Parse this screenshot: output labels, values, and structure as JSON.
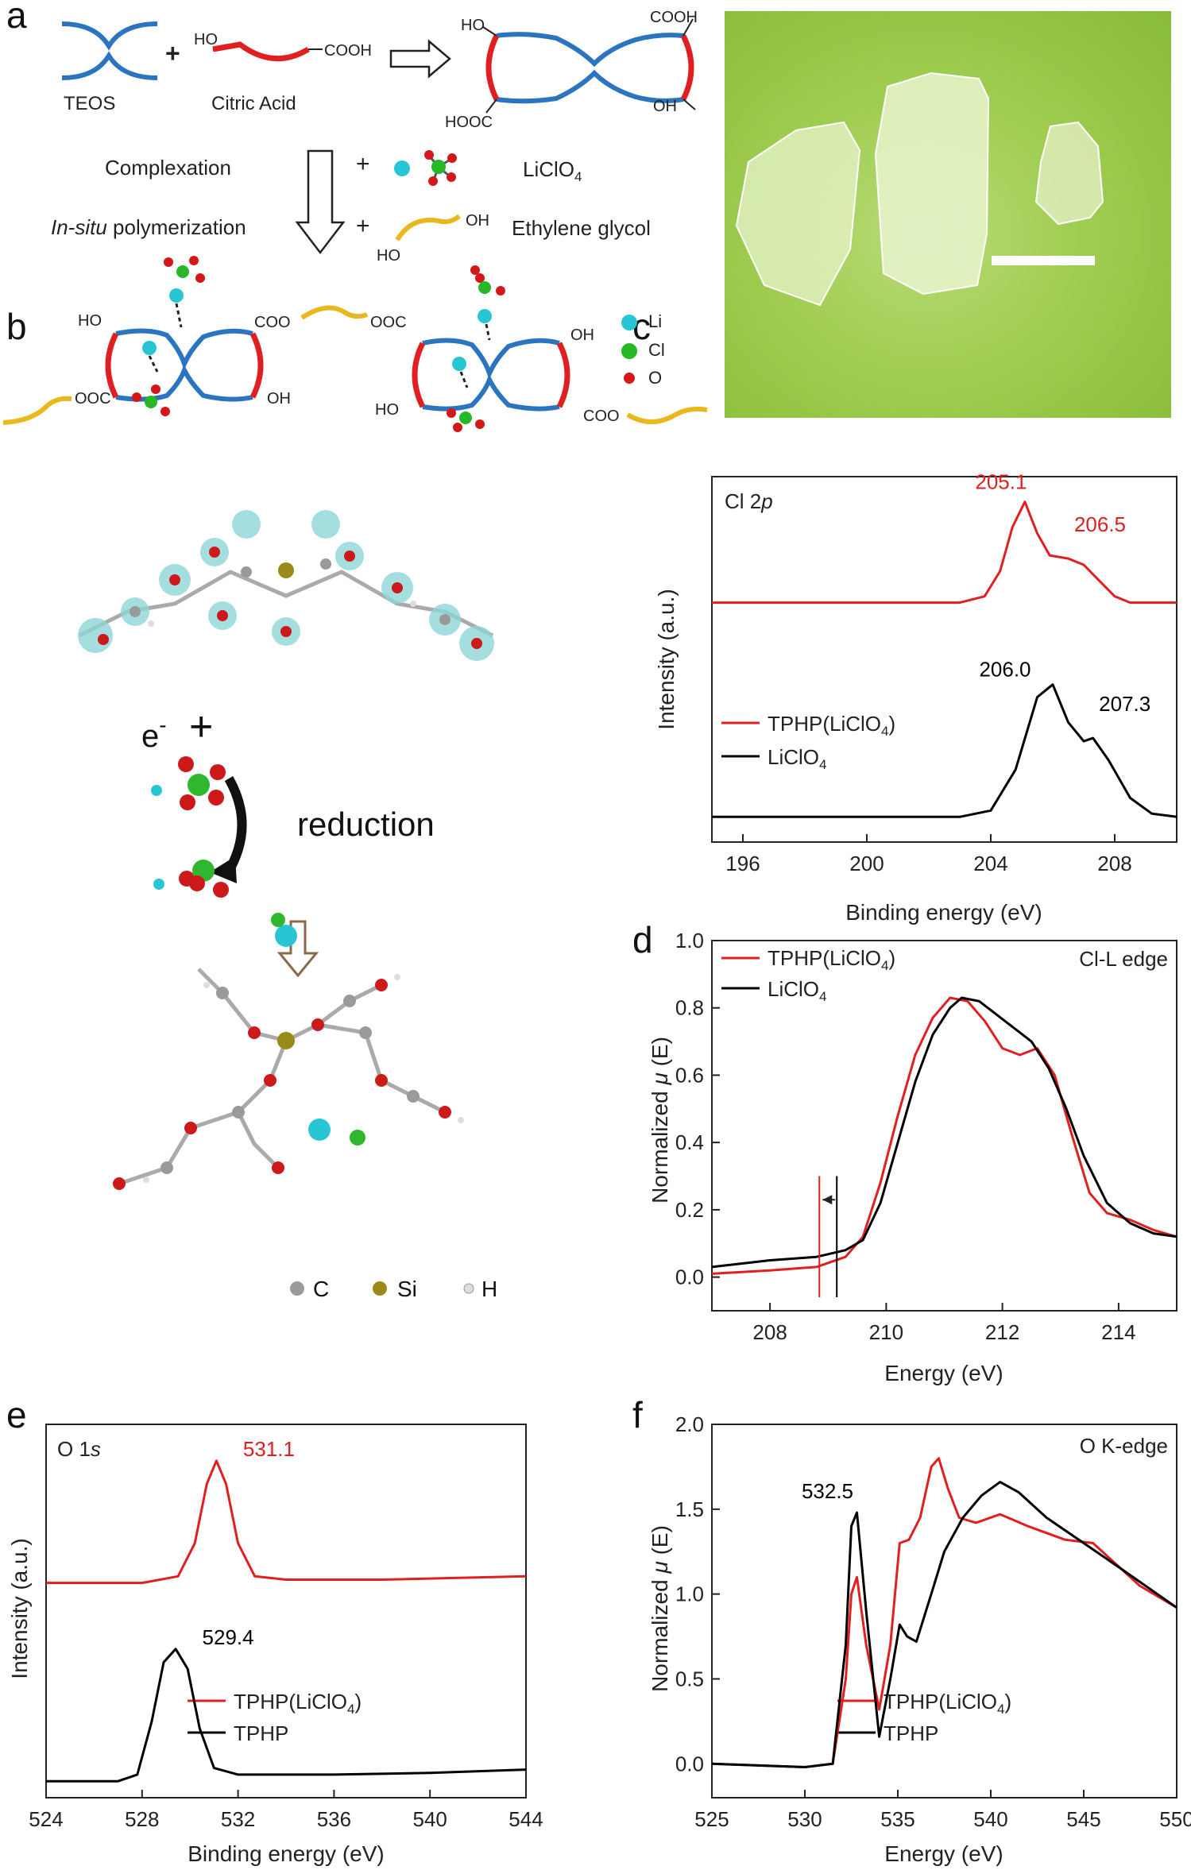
{
  "panel_labels": {
    "a": "a",
    "b": "b",
    "c": "c",
    "d": "d",
    "e": "e",
    "f": "f"
  },
  "scheme": {
    "teos": "TEOS",
    "citric_acid": "Citric Acid",
    "plus": "+",
    "complexation": "Complexation",
    "licl_o4_prefix": "LiClO",
    "licl_o4_sub": "4",
    "in_situ": "In-situ",
    "polymerization": " polymerization",
    "ethylene_glycol": "Ethylene glycol",
    "groups": {
      "ho": "HO",
      "oh": "OH",
      "cooh": "COOH",
      "hooc": "HOOC",
      "coo": "COO",
      "ooc": "OOC"
    },
    "legend": {
      "li": "Li",
      "cl": "Cl",
      "o": "O"
    },
    "colors": {
      "teos_blue": "#2a74c0",
      "citric_red": "#e02020",
      "glycol_yellow": "#e8b81c",
      "li": "#28c6d4",
      "cl": "#26b826",
      "o": "#d41818"
    }
  },
  "photo": {
    "background": "#9fcd50",
    "scale_bar": "white"
  },
  "panel_b": {
    "electron": "e",
    "electron_sup": "-",
    "plus": "+",
    "reduction": "reduction",
    "legend": {
      "c": "C",
      "si": "Si",
      "h": "H"
    },
    "colors": {
      "c": "#9a9a9a",
      "si": "#9a8a18",
      "h": "#dddddd",
      "o": "#cc1a1a",
      "li": "#28c6d4",
      "cl": "#2fb82f",
      "orbital": "#8fd6d6"
    }
  },
  "chart_data": [
    {
      "id": "c",
      "type": "line",
      "title": "Cl 2",
      "title_italic": "p",
      "xlabel": "Binding energy (eV)",
      "ylabel": "Intensity (a.u.)",
      "xlim": [
        195,
        210
      ],
      "xticks": [
        "196",
        "200",
        "204",
        "208"
      ],
      "yticks": [],
      "series": [
        {
          "name": "TPHP(LiClO",
          "name_sub": "4",
          "name_end": ")",
          "color": "#e02020",
          "x": [
            195,
            203,
            203.8,
            204.3,
            204.7,
            205.1,
            205.5,
            205.9,
            206.5,
            207.0,
            207.5,
            208.0,
            208.5,
            210
          ],
          "y": [
            0.68,
            0.68,
            0.7,
            0.78,
            0.92,
            1.0,
            0.9,
            0.83,
            0.82,
            0.8,
            0.75,
            0.7,
            0.68,
            0.68
          ]
        },
        {
          "name": "LiClO",
          "name_sub": "4",
          "color": "#000000",
          "x": [
            195,
            203,
            204,
            204.8,
            205.5,
            206.0,
            206.5,
            207.0,
            207.3,
            207.8,
            208.5,
            209.2,
            210
          ],
          "y": [
            0.0,
            0.0,
            0.02,
            0.15,
            0.38,
            0.42,
            0.3,
            0.24,
            0.25,
            0.18,
            0.06,
            0.01,
            0.0
          ]
        }
      ],
      "annotations": [
        {
          "text": "205.1",
          "color": "#e02020",
          "x": 205.1
        },
        {
          "text": "206.5",
          "color": "#e02020",
          "x": 206.5
        },
        {
          "text": "206.0",
          "color": "#000000",
          "x": 206.0
        },
        {
          "text": "207.3",
          "color": "#000000",
          "x": 207.3
        }
      ],
      "legend": "center-left"
    },
    {
      "id": "d",
      "type": "line",
      "title": "Cl-L edge",
      "xlabel": "Energy (eV)",
      "ylabel": "Normalized μ (E)",
      "ylabel_prefix": "Normalized ",
      "ylabel_mu": "μ",
      "ylabel_suffix": " (E)",
      "xlim": [
        207,
        215
      ],
      "ylim": [
        -0.1,
        1.0
      ],
      "xticks": [
        "208",
        "210",
        "212",
        "214"
      ],
      "yticks": [
        "0.0",
        "0.2",
        "0.4",
        "0.6",
        "0.8",
        "1.0"
      ],
      "series": [
        {
          "name": "TPHP(LiClO",
          "name_sub": "4",
          "name_end": ")",
          "color": "#e02020",
          "x": [
            207,
            208,
            208.8,
            209.3,
            209.6,
            209.9,
            210.2,
            210.5,
            210.8,
            211.1,
            211.4,
            211.7,
            212.0,
            212.3,
            212.6,
            212.9,
            213.2,
            213.5,
            213.8,
            214.2,
            214.6,
            215
          ],
          "y": [
            0.01,
            0.02,
            0.03,
            0.06,
            0.12,
            0.28,
            0.48,
            0.66,
            0.77,
            0.83,
            0.82,
            0.76,
            0.68,
            0.66,
            0.68,
            0.6,
            0.42,
            0.25,
            0.19,
            0.17,
            0.14,
            0.12
          ]
        },
        {
          "name": "LiClO",
          "name_sub": "4",
          "color": "#000000",
          "x": [
            207,
            208,
            208.8,
            209.3,
            209.6,
            209.9,
            210.2,
            210.5,
            210.8,
            211.1,
            211.3,
            211.6,
            211.9,
            212.2,
            212.5,
            212.8,
            213.1,
            213.4,
            213.8,
            214.2,
            214.6,
            215
          ],
          "y": [
            0.03,
            0.05,
            0.06,
            0.08,
            0.11,
            0.22,
            0.4,
            0.58,
            0.72,
            0.8,
            0.83,
            0.82,
            0.78,
            0.74,
            0.7,
            0.62,
            0.5,
            0.36,
            0.22,
            0.16,
            0.13,
            0.12
          ]
        }
      ],
      "markers": [
        {
          "x": 208.85,
          "color": "#e02020"
        },
        {
          "x": 209.15,
          "color": "#000000"
        }
      ],
      "legend": "top-left"
    },
    {
      "id": "e",
      "type": "line",
      "title": "O 1",
      "title_italic": "s",
      "xlabel": "Binding energy (eV)",
      "ylabel": "Intensity (a.u.)",
      "xlim": [
        524,
        544
      ],
      "xticks": [
        "524",
        "528",
        "532",
        "536",
        "540",
        "544"
      ],
      "yticks": [],
      "series": [
        {
          "name": "TPHP(LiClO",
          "name_sub": "4",
          "name_end": ")",
          "color": "#e02020",
          "x": [
            524,
            528,
            529.5,
            530.2,
            530.7,
            531.1,
            531.5,
            532.0,
            532.7,
            534,
            538,
            544
          ],
          "y": [
            0.6,
            0.6,
            0.62,
            0.72,
            0.9,
            0.97,
            0.9,
            0.72,
            0.62,
            0.61,
            0.61,
            0.62
          ]
        },
        {
          "name": "TPHP",
          "color": "#000000",
          "x": [
            524,
            527,
            527.8,
            528.4,
            528.9,
            529.4,
            529.9,
            530.4,
            531.0,
            532,
            536,
            540,
            544
          ],
          "y": [
            0.0,
            0.0,
            0.02,
            0.18,
            0.36,
            0.4,
            0.34,
            0.16,
            0.04,
            0.02,
            0.02,
            0.025,
            0.035
          ]
        }
      ],
      "annotations": [
        {
          "text": "531.1",
          "color": "#e02020",
          "x": 531.1
        },
        {
          "text": "529.4",
          "color": "#000000",
          "x": 529.4
        }
      ],
      "legend": "bottom-right"
    },
    {
      "id": "f",
      "type": "line",
      "title": "O K-edge",
      "xlabel": "Energy (eV)",
      "ylabel": "Normalized μ (E)",
      "ylabel_prefix": "Normalized ",
      "ylabel_mu": "μ",
      "ylabel_suffix": " (E)",
      "xlim": [
        525,
        550
      ],
      "ylim": [
        -0.2,
        2.0
      ],
      "xticks": [
        "525",
        "530",
        "535",
        "540",
        "545",
        "550"
      ],
      "yticks": [
        "0.0",
        "0.5",
        "1.0",
        "1.5",
        "2.0"
      ],
      "series": [
        {
          "name": "TPHP(LiClO",
          "name_sub": "4",
          "name_end": ")",
          "color": "#e02020",
          "x": [
            525,
            530,
            531.5,
            532.2,
            532.5,
            532.8,
            533.3,
            534.0,
            534.6,
            535.1,
            535.6,
            536.2,
            536.8,
            537.2,
            537.7,
            538.3,
            539.2,
            540.5,
            542,
            544,
            545.5,
            546.5,
            548,
            550
          ],
          "y": [
            0.0,
            -0.02,
            0.0,
            0.5,
            1.0,
            1.1,
            0.7,
            0.32,
            0.7,
            1.3,
            1.32,
            1.45,
            1.75,
            1.8,
            1.62,
            1.45,
            1.42,
            1.47,
            1.4,
            1.32,
            1.3,
            1.2,
            1.05,
            0.92
          ]
        },
        {
          "name": "TPHP",
          "color": "#000000",
          "x": [
            525,
            530,
            531.5,
            532.2,
            532.5,
            532.8,
            533.3,
            534.0,
            534.6,
            535.1,
            535.5,
            536.0,
            536.8,
            537.5,
            538.5,
            539.5,
            540.5,
            541.5,
            543,
            545,
            547,
            550
          ],
          "y": [
            0.0,
            -0.02,
            0.0,
            0.7,
            1.4,
            1.48,
            0.9,
            0.16,
            0.5,
            0.82,
            0.75,
            0.72,
            1.0,
            1.25,
            1.45,
            1.58,
            1.66,
            1.6,
            1.45,
            1.3,
            1.15,
            0.92
          ]
        }
      ],
      "annotations": [
        {
          "text": "532.5",
          "color": "#000000",
          "x": 532.5
        }
      ],
      "legend": "bottom-right"
    }
  ]
}
